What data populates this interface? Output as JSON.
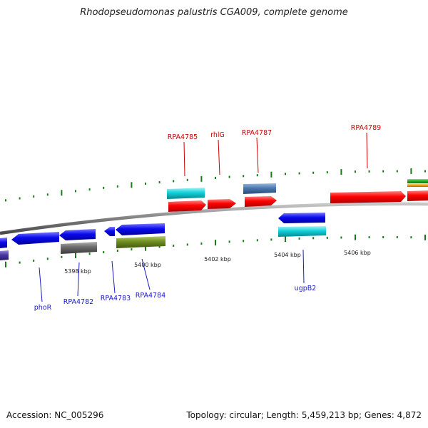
{
  "title": "Rhodopseudomonas palustris CGA009, complete genome",
  "footer": {
    "accession": "Accession: NC_005296",
    "summary": "Topology: circular; Length: 5,459,213 bp; Genes: 4,872"
  },
  "colors": {
    "forward_label": "#cc0000",
    "reverse_label": "#1a1acc",
    "tick": "#1a7a1a",
    "backbone": "#7f7f7f",
    "red": "#ff0000",
    "blue": "#0a0aee",
    "cyan": "#10d0d8",
    "gray": "#6a6a6a",
    "olive": "#6f8f1f",
    "steel": "#4a78b0",
    "green": "#22b022",
    "orange": "#ff9a00",
    "purple": "#4a3aa0"
  },
  "scale": {
    "ticks": [
      {
        "label": "5398 kbp",
        "kbp": 5398
      },
      {
        "label": "5400 kbp",
        "kbp": 5400
      },
      {
        "label": "5402 kbp",
        "kbp": 5402
      },
      {
        "label": "5404 kbp",
        "kbp": 5404
      },
      {
        "label": "5406 kbp",
        "kbp": 5406
      }
    ]
  },
  "gene_labels": {
    "forward": [
      "RPA4785",
      "rhlG",
      "RPA4787",
      "RPA4789"
    ],
    "reverse": [
      "phoR",
      "RPA4782",
      "RPA4783",
      "RPA4784",
      "ugpB2"
    ]
  }
}
